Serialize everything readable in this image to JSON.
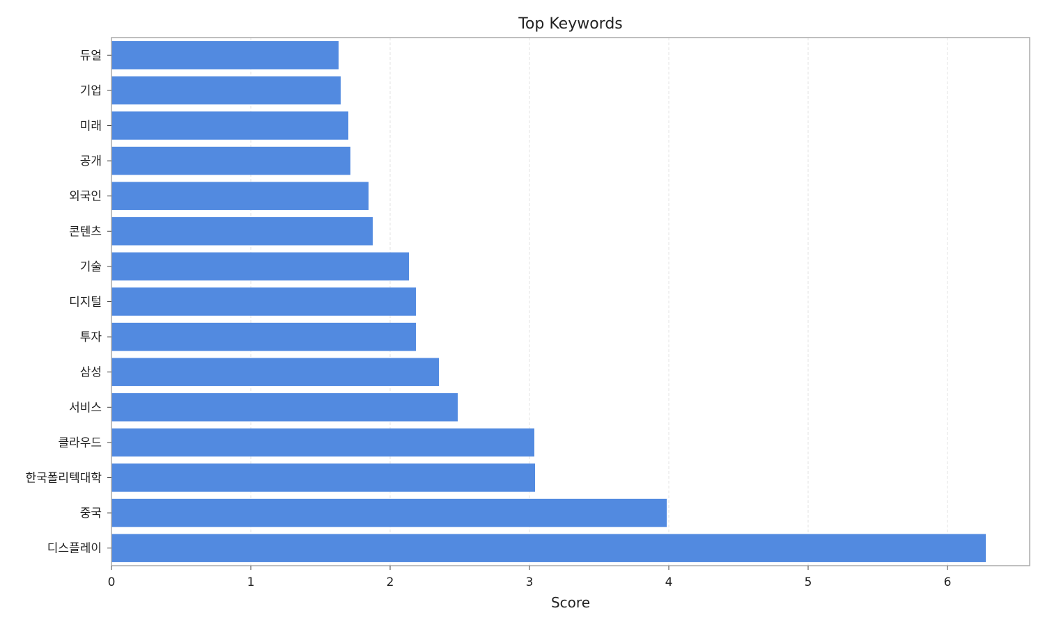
{
  "chart_data": {
    "type": "bar",
    "orientation": "horizontal",
    "title": "Top Keywords",
    "xlabel": "Score",
    "ylabel": "",
    "xlim": [
      0,
      6.59
    ],
    "xticks": [
      0,
      1,
      2,
      3,
      4,
      5,
      6
    ],
    "grid": "x, dashed",
    "bar_color": "#528AE0",
    "categories": [
      "듀얼",
      "기업",
      "미래",
      "공개",
      "외국인",
      "콘텐츠",
      "기술",
      "디지털",
      "투자",
      "삼성",
      "서비스",
      "클라우드",
      "한국폴리텍대학",
      "중국",
      "디스플레이"
    ],
    "values": [
      1.63,
      1.645,
      1.7,
      1.715,
      1.845,
      1.875,
      2.135,
      2.185,
      2.185,
      2.35,
      2.485,
      3.035,
      3.04,
      3.985,
      6.275
    ]
  }
}
